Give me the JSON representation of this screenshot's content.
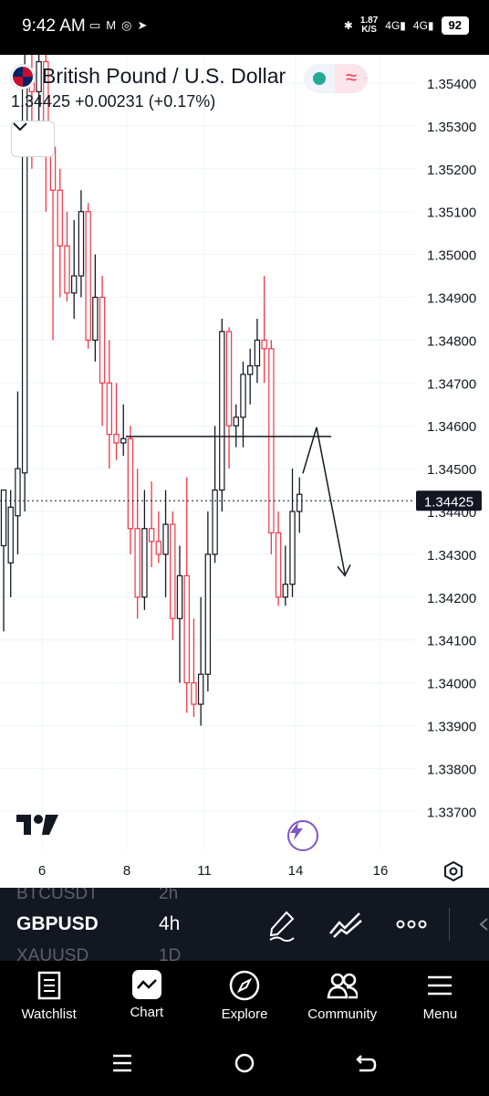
{
  "status_bar": {
    "time": "9:42 AM",
    "speed_value": "1.87",
    "speed_unit": "K/S",
    "net1": "4G",
    "net2": "4G",
    "battery": "92"
  },
  "header": {
    "symbol_name": "British Pound / U.S. Dollar",
    "price": "1.34425",
    "change": "+0.00231",
    "change_pct": "(+0.17%)"
  },
  "colors": {
    "up": "#131722",
    "down": "#f23645",
    "market_open": "#22ab94",
    "accent": "#7e57c2"
  },
  "chart_data": {
    "type": "candlestick",
    "y_ticks": [
      "1.35400",
      "1.35300",
      "1.35200",
      "1.35100",
      "1.35000",
      "1.34900",
      "1.34800",
      "1.34700",
      "1.34600",
      "1.34500",
      "1.34400",
      "1.34300",
      "1.34200",
      "1.34100",
      "1.34000",
      "1.33900",
      "1.33800",
      "1.33700"
    ],
    "x_ticks": [
      "6",
      "8",
      "11",
      "14",
      "16"
    ],
    "current_price_label": "1.34425",
    "ylim": [
      1.3363,
      1.3553
    ],
    "candles": [
      [
        1.3432,
        1.3445,
        1.3412,
        1.3445
      ],
      [
        1.3428,
        1.3445,
        1.342,
        1.3441
      ],
      [
        1.3439,
        1.3468,
        1.343,
        1.345
      ],
      [
        1.3449,
        1.355,
        1.344,
        1.354
      ],
      [
        1.354,
        1.3555,
        1.352,
        1.3538
      ],
      [
        1.3538,
        1.356,
        1.3525,
        1.3545
      ],
      [
        1.3545,
        1.356,
        1.351,
        1.3525
      ],
      [
        1.3525,
        1.353,
        1.348,
        1.3515
      ],
      [
        1.3515,
        1.352,
        1.349,
        1.3502
      ],
      [
        1.3502,
        1.351,
        1.3489,
        1.3491
      ],
      [
        1.3491,
        1.3508,
        1.3485,
        1.3495
      ],
      [
        1.3495,
        1.3515,
        1.349,
        1.351
      ],
      [
        1.351,
        1.3512,
        1.3478,
        1.348
      ],
      [
        1.348,
        1.35,
        1.3475,
        1.349
      ],
      [
        1.349,
        1.3495,
        1.346,
        1.347
      ],
      [
        1.347,
        1.348,
        1.345,
        1.3458
      ],
      [
        1.3458,
        1.347,
        1.3452,
        1.3456
      ],
      [
        1.3456,
        1.3465,
        1.3453,
        1.3457
      ],
      [
        1.3457,
        1.346,
        1.343,
        1.3436
      ],
      [
        1.3436,
        1.345,
        1.3415,
        1.342
      ],
      [
        1.342,
        1.3445,
        1.3417,
        1.3436
      ],
      [
        1.3436,
        1.3447,
        1.3427,
        1.3433
      ],
      [
        1.3433,
        1.344,
        1.3428,
        1.343
      ],
      [
        1.343,
        1.3445,
        1.342,
        1.3437
      ],
      [
        1.3437,
        1.344,
        1.341,
        1.3415
      ],
      [
        1.3415,
        1.3432,
        1.34,
        1.3425
      ],
      [
        1.3425,
        1.3448,
        1.3393,
        1.34
      ],
      [
        1.34,
        1.3415,
        1.3392,
        1.3395
      ],
      [
        1.3395,
        1.342,
        1.339,
        1.3402
      ],
      [
        1.3402,
        1.344,
        1.3398,
        1.343
      ],
      [
        1.343,
        1.346,
        1.3428,
        1.3445
      ],
      [
        1.3445,
        1.3485,
        1.344,
        1.3482
      ],
      [
        1.3482,
        1.3483,
        1.345,
        1.346
      ],
      [
        1.346,
        1.3465,
        1.3455,
        1.3462
      ],
      [
        1.3462,
        1.3475,
        1.3455,
        1.3472
      ],
      [
        1.3472,
        1.3478,
        1.3465,
        1.3474
      ],
      [
        1.3474,
        1.3485,
        1.347,
        1.348
      ],
      [
        1.348,
        1.3495,
        1.347,
        1.3478
      ],
      [
        1.3478,
        1.348,
        1.343,
        1.3435
      ],
      [
        1.3435,
        1.344,
        1.3418,
        1.342
      ],
      [
        1.342,
        1.3432,
        1.3418,
        1.3423
      ],
      [
        1.3423,
        1.345,
        1.342,
        1.344
      ],
      [
        1.344,
        1.3448,
        1.3435,
        1.3444
      ]
    ],
    "levels": [
      1.34575
    ],
    "current_price": 1.34425
  },
  "symbol_strip": {
    "prev_symbol": "BTCUSDT",
    "prev_tf": "2h",
    "symbol": "GBPUSD",
    "tf": "4h",
    "next_symbol": "XAUUSD",
    "next_tf": "1D"
  },
  "nav": [
    {
      "label": "Watchlist",
      "icon": "watchlist-icon"
    },
    {
      "label": "Chart",
      "icon": "chart-icon"
    },
    {
      "label": "Explore",
      "icon": "compass-icon"
    },
    {
      "label": "Community",
      "icon": "community-icon"
    },
    {
      "label": "Menu",
      "icon": "menu-icon"
    }
  ]
}
